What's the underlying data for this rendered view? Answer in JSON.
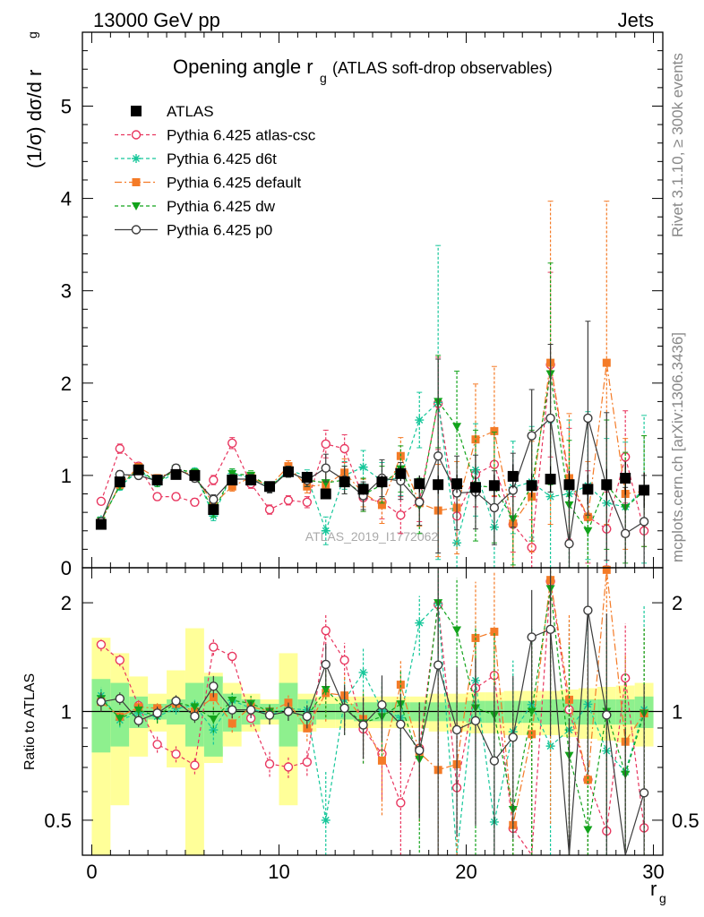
{
  "header": {
    "left": "13000 GeV pp",
    "right": "Jets"
  },
  "side_labels": {
    "rivet": "Rivet 3.1.10, ≥ 300k events",
    "mcplots": "mcplots.cern.ch [arXiv:1306.3436]"
  },
  "watermark": "ATLAS_2019_I1772062",
  "colors": {
    "ATLAS": "#000000",
    "atlas-csc": "#e8365f",
    "d6t": "#16c79a",
    "default": "#f47b27",
    "dw": "#12a31b",
    "p0": "#3c3c3c",
    "band_inner": "#8ef08e",
    "band_outer": "#ffff99"
  },
  "chart_data": [
    {
      "id": "main",
      "type": "scatter",
      "title_main": "Opening angle r",
      "title_sub": "g",
      "title_rest": "(ATLAS soft-drop observables)",
      "xlabel_main": "r",
      "xlabel_sub": "g",
      "ylabel": "(1/σ) dσ/d r",
      "ylabel_sub": "g",
      "xlim": [
        -0.5,
        30.5
      ],
      "ylim": [
        0,
        5.8
      ],
      "x_ticks": [
        "0",
        "10",
        "20",
        "30"
      ],
      "y_ticks": [
        "0",
        "1",
        "2",
        "3",
        "4",
        "5"
      ],
      "x": [
        0.5,
        1.5,
        2.5,
        3.5,
        4.5,
        5.5,
        6.5,
        7.5,
        8.5,
        9.5,
        10.5,
        11.5,
        12.5,
        13.5,
        14.5,
        15.5,
        16.5,
        17.5,
        18.5,
        19.5,
        20.5,
        21.5,
        22.5,
        23.5,
        24.5,
        25.5,
        26.5,
        27.5,
        28.5,
        29.5
      ],
      "legend": [
        {
          "label": "ATLAS",
          "key": "ATLAS"
        },
        {
          "label": "Pythia 6.425 atlas-csc",
          "key": "atlas-csc"
        },
        {
          "label": "Pythia 6.425 d6t",
          "key": "d6t"
        },
        {
          "label": "Pythia 6.425 default",
          "key": "default"
        },
        {
          "label": "Pythia 6.425 dw",
          "key": "dw"
        },
        {
          "label": "Pythia 6.425 p0",
          "key": "p0"
        }
      ],
      "series": [
        {
          "key": "ATLAS",
          "marker": "square",
          "values": [
            0.47,
            0.93,
            1.06,
            0.95,
            1.01,
            1.0,
            0.63,
            0.95,
            0.95,
            0.88,
            1.04,
            0.98,
            0.8,
            0.93,
            0.85,
            0.93,
            1.02,
            0.91,
            0.9,
            0.91,
            0.87,
            0.89,
            0.99,
            0.89,
            0.96,
            0.9,
            0.85,
            0.9,
            0.97,
            0.84
          ],
          "err": [
            0.03,
            0.04,
            0.04,
            0.03,
            0.03,
            0.03,
            0.05,
            0.04,
            0.04,
            0.04,
            0.05,
            0.05,
            0.05,
            0.05,
            0.06,
            0.07,
            0.08,
            0.09,
            0.1,
            0.1,
            0.12,
            0.12,
            0.13,
            0.13,
            0.14,
            0.15,
            0.16,
            0.17,
            0.18,
            0.19
          ]
        },
        {
          "key": "atlas-csc",
          "marker": "circle-open",
          "dash": "4,3",
          "values": [
            0.72,
            1.29,
            1.1,
            0.77,
            0.77,
            0.71,
            0.95,
            1.35,
            0.91,
            0.63,
            0.73,
            0.71,
            1.34,
            1.29,
            0.76,
            0.71,
            0.57,
            0.72,
            1.78,
            0.56,
            1.01,
            1.12,
            0.47,
            0.22,
            2.2,
            0.91,
            0.55,
            0.42,
            1.2,
            0.4
          ],
          "err": [
            0.03,
            0.05,
            0.04,
            0.04,
            0.04,
            0.04,
            0.05,
            0.06,
            0.05,
            0.05,
            0.05,
            0.06,
            0.15,
            0.15,
            0.15,
            0.18,
            0.2,
            0.22,
            0.5,
            0.3,
            0.35,
            0.35,
            0.3,
            0.3,
            1.0,
            0.6,
            0.5,
            0.4,
            0.5,
            0.4
          ]
        },
        {
          "key": "d6t",
          "marker": "star",
          "dash": "4,3",
          "values": [
            0.52,
            0.88,
            1.05,
            0.92,
            1.03,
            1.04,
            0.56,
            1.02,
            0.97,
            0.86,
            1.06,
            0.99,
            0.4,
            1.0,
            1.09,
            0.94,
            0.98,
            1.6,
            1.79,
            0.27,
            1.06,
            0.44,
            0.87,
            0.93,
            0.77,
            0.8,
            0.89,
            0.7,
            0.66,
            0.85
          ],
          "err": [
            0.03,
            0.04,
            0.04,
            0.04,
            0.04,
            0.04,
            0.05,
            0.05,
            0.05,
            0.05,
            0.06,
            0.07,
            0.15,
            0.15,
            0.18,
            0.2,
            0.2,
            0.3,
            1.7,
            0.5,
            0.5,
            0.5,
            0.5,
            0.6,
            0.8,
            0.8,
            0.8,
            0.7,
            0.7,
            0.8
          ]
        },
        {
          "key": "default",
          "marker": "square-small",
          "dash": "8,3,2,3",
          "values": [
            0.5,
            0.9,
            1.09,
            0.97,
            1.06,
            1.0,
            0.69,
            0.88,
            0.98,
            0.88,
            1.1,
            0.88,
            0.9,
            1.03,
            0.81,
            0.68,
            1.21,
            0.7,
            0.62,
            0.65,
            1.39,
            1.48,
            0.48,
            0.77,
            2.22,
            0.97,
            0.55,
            2.22,
            0.8,
            0.83
          ],
          "err": [
            0.03,
            0.04,
            0.04,
            0.04,
            0.04,
            0.04,
            0.05,
            0.05,
            0.05,
            0.05,
            0.06,
            0.07,
            0.15,
            0.15,
            0.15,
            0.2,
            0.2,
            0.25,
            0.5,
            0.5,
            0.6,
            0.7,
            0.5,
            0.6,
            1.75,
            0.7,
            0.6,
            1.75,
            0.6,
            0.6
          ]
        },
        {
          "key": "dw",
          "marker": "triangle-down",
          "dash": "4,3",
          "values": [
            0.51,
            0.89,
            1.07,
            0.92,
            1.07,
            1.03,
            0.6,
            1.02,
            1.0,
            0.88,
            1.04,
            0.95,
            0.92,
            0.95,
            0.79,
            0.9,
            1.07,
            0.67,
            1.8,
            1.53,
            0.89,
            0.87,
            0.53,
            0.89,
            2.1,
            0.68,
            0.4,
            0.9,
            0.65,
            0.83
          ],
          "err": [
            0.03,
            0.04,
            0.04,
            0.04,
            0.04,
            0.04,
            0.05,
            0.05,
            0.05,
            0.05,
            0.06,
            0.07,
            0.15,
            0.15,
            0.18,
            0.2,
            0.25,
            0.3,
            0.5,
            0.6,
            0.6,
            0.6,
            0.5,
            0.6,
            1.2,
            0.7,
            0.5,
            0.7,
            0.6,
            0.6
          ]
        },
        {
          "key": "p0",
          "marker": "circle-open",
          "dash": "",
          "values": [
            0.5,
            1.01,
            1.0,
            0.94,
            1.08,
            0.97,
            0.74,
            0.96,
            0.96,
            0.86,
            1.04,
            0.95,
            1.08,
            0.95,
            0.78,
            0.97,
            0.94,
            0.71,
            1.21,
            0.81,
            0.82,
            0.65,
            0.84,
            1.43,
            1.62,
            0.26,
            1.62,
            0.88,
            0.37,
            0.5
          ],
          "err": [
            0.03,
            0.04,
            0.04,
            0.04,
            0.04,
            0.04,
            0.05,
            0.05,
            0.05,
            0.05,
            0.06,
            0.07,
            0.15,
            0.15,
            0.15,
            0.2,
            0.2,
            0.25,
            1.05,
            0.4,
            0.4,
            0.4,
            0.4,
            0.5,
            0.8,
            0.6,
            1.05,
            0.8,
            0.5,
            0.5
          ]
        }
      ]
    },
    {
      "id": "ratio",
      "type": "scatter",
      "ylabel": "Ratio to ATLAS",
      "log_y": true,
      "ylim": [
        0.4,
        2.5
      ],
      "y_ticks": [
        "0.5",
        "1",
        "2"
      ],
      "y_tick_values": [
        0.5,
        1,
        2
      ],
      "band_inner": [
        0.23,
        0.2,
        0.1,
        0.05,
        0.08,
        0.2,
        0.25,
        0.12,
        0.08,
        0.05,
        0.2,
        0.08,
        0.05,
        0.05,
        0.06,
        0.06,
        0.06,
        0.06,
        0.06,
        0.06,
        0.07,
        0.07,
        0.07,
        0.07,
        0.08,
        0.08,
        0.08,
        0.08,
        0.08,
        0.1
      ],
      "band_outer": [
        0.6,
        0.45,
        0.25,
        0.12,
        0.3,
        0.7,
        0.28,
        0.2,
        0.12,
        0.08,
        0.45,
        0.12,
        0.1,
        0.1,
        0.1,
        0.1,
        0.1,
        0.1,
        0.12,
        0.12,
        0.13,
        0.13,
        0.14,
        0.14,
        0.14,
        0.15,
        0.16,
        0.17,
        0.18,
        0.2
      ]
    }
  ]
}
